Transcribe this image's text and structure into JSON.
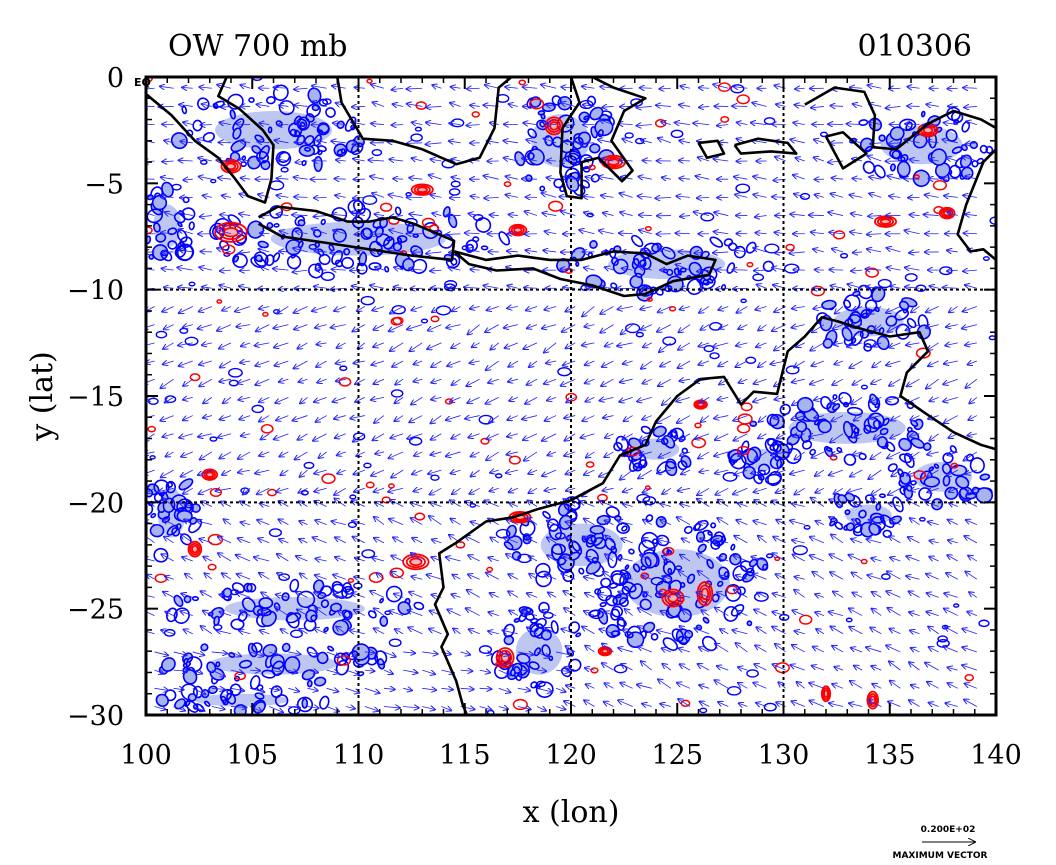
{
  "chart_data": {
    "type": "scatter",
    "title_left": "OW 700 mb",
    "title_right": "010306",
    "xlabel": "x (lon)",
    "ylabel": "y (lat)",
    "xlim": [
      100,
      140
    ],
    "ylim": [
      -30,
      0
    ],
    "x_ticks": [
      100,
      105,
      110,
      115,
      120,
      125,
      130,
      135,
      140
    ],
    "x_tick_labels": [
      "100",
      "105",
      "110",
      "115",
      "120",
      "125",
      "130",
      "135",
      "140"
    ],
    "y_ticks": [
      0,
      -5,
      -10,
      -15,
      -20,
      -25,
      -30
    ],
    "y_tick_labels": [
      "0",
      "−5",
      "−10",
      "−15",
      "−20",
      "−25",
      "−30"
    ],
    "grid_lines_x": [
      110,
      120,
      130
    ],
    "grid_lines_y": [
      -10,
      -20
    ],
    "corner_label": "EQ",
    "vector_scale_label": "0.200E+02",
    "vector_caption": "MAXIMUM VECTOR",
    "colors": {
      "coast": "#000000",
      "positive_contour": "#ff0000",
      "negative_contour": "#0000ff",
      "shade_fill": "#a8b4ee",
      "vector": "#2020ff"
    },
    "coastlines": [
      {
        "name": "sumatra",
        "points": [
          [
            100.0,
            -0.8
          ],
          [
            101.2,
            -1.8
          ],
          [
            102.3,
            -3.0
          ],
          [
            103.4,
            -3.8
          ],
          [
            104.2,
            -4.8
          ],
          [
            104.8,
            -5.6
          ],
          [
            105.6,
            -5.9
          ],
          [
            105.9,
            -4.8
          ],
          [
            106.0,
            -3.2
          ],
          [
            105.5,
            -2.5
          ],
          [
            104.4,
            -1.5
          ],
          [
            103.4,
            -0.9
          ],
          [
            103.8,
            0.0
          ]
        ]
      },
      {
        "name": "java",
        "points": [
          [
            105.3,
            -6.6
          ],
          [
            106.2,
            -6.1
          ],
          [
            108.0,
            -6.3
          ],
          [
            109.5,
            -6.8
          ],
          [
            110.5,
            -6.8
          ],
          [
            111.6,
            -6.6
          ],
          [
            112.6,
            -6.9
          ],
          [
            114.5,
            -7.7
          ],
          [
            114.4,
            -8.6
          ],
          [
            112.5,
            -8.4
          ],
          [
            110.5,
            -8.1
          ],
          [
            108.5,
            -7.8
          ],
          [
            106.4,
            -7.5
          ],
          [
            105.3,
            -6.9
          ]
        ]
      },
      {
        "name": "borneo",
        "points": [
          [
            109.0,
            0.0
          ],
          [
            109.2,
            -1.2
          ],
          [
            110.2,
            -2.9
          ],
          [
            111.6,
            -3.0
          ],
          [
            113.0,
            -3.4
          ],
          [
            114.6,
            -4.1
          ],
          [
            115.7,
            -3.8
          ],
          [
            116.4,
            -2.4
          ],
          [
            116.6,
            -0.5
          ],
          [
            117.2,
            0.0
          ]
        ]
      },
      {
        "name": "sulawesi",
        "points": [
          [
            120.0,
            0.0
          ],
          [
            120.4,
            -1.2
          ],
          [
            119.6,
            -2.4
          ],
          [
            119.5,
            -4.5
          ],
          [
            119.8,
            -5.6
          ],
          [
            120.5,
            -5.7
          ],
          [
            120.5,
            -4.0
          ],
          [
            121.3,
            -3.8
          ],
          [
            122.4,
            -4.9
          ],
          [
            122.9,
            -4.4
          ],
          [
            121.9,
            -3.0
          ],
          [
            122.5,
            -1.6
          ],
          [
            123.5,
            -1.0
          ],
          [
            122.0,
            -0.5
          ],
          [
            121.0,
            0.0
          ]
        ]
      },
      {
        "name": "lesser-sunda",
        "points": [
          [
            114.5,
            -8.2
          ],
          [
            116.0,
            -8.6
          ],
          [
            117.5,
            -8.4
          ],
          [
            119.0,
            -8.6
          ],
          [
            120.5,
            -8.6
          ],
          [
            122.0,
            -8.2
          ],
          [
            123.5,
            -8.3
          ],
          [
            124.5,
            -8.8
          ],
          [
            125.5,
            -8.4
          ],
          [
            126.8,
            -8.6
          ],
          [
            126.5,
            -9.3
          ],
          [
            124.8,
            -9.6
          ],
          [
            123.5,
            -10.2
          ],
          [
            122.5,
            -10.3
          ],
          [
            121.0,
            -9.8
          ],
          [
            119.5,
            -9.5
          ],
          [
            118.2,
            -9.0
          ],
          [
            116.5,
            -9.1
          ],
          [
            115.2,
            -8.8
          ],
          [
            114.5,
            -8.2
          ]
        ]
      },
      {
        "name": "seram",
        "points": [
          [
            127.7,
            -3.2
          ],
          [
            128.8,
            -2.9
          ],
          [
            130.2,
            -3.1
          ],
          [
            130.6,
            -3.6
          ],
          [
            129.4,
            -3.5
          ],
          [
            128.0,
            -3.6
          ],
          [
            127.7,
            -3.2
          ]
        ]
      },
      {
        "name": "buru",
        "points": [
          [
            126.0,
            -3.1
          ],
          [
            126.9,
            -3.0
          ],
          [
            127.2,
            -3.6
          ],
          [
            126.4,
            -3.8
          ],
          [
            126.0,
            -3.1
          ]
        ]
      },
      {
        "name": "new-guinea",
        "points": [
          [
            131.0,
            -1.3
          ],
          [
            132.4,
            -0.5
          ],
          [
            133.8,
            -0.7
          ],
          [
            134.3,
            -1.8
          ],
          [
            134.2,
            -3.3
          ],
          [
            135.3,
            -3.4
          ],
          [
            136.8,
            -2.2
          ],
          [
            138.0,
            -1.6
          ],
          [
            139.3,
            -2.0
          ],
          [
            140.0,
            -2.4
          ],
          [
            140.0,
            -3.4
          ],
          [
            139.4,
            -4.0
          ],
          [
            138.6,
            -6.0
          ],
          [
            138.2,
            -7.4
          ],
          [
            138.8,
            -8.2
          ],
          [
            139.4,
            -8.1
          ],
          [
            140.0,
            -8.6
          ]
        ]
      },
      {
        "name": "bird-head",
        "points": [
          [
            132.0,
            -2.8
          ],
          [
            132.8,
            -2.6
          ],
          [
            133.9,
            -3.6
          ],
          [
            132.8,
            -4.3
          ],
          [
            132.0,
            -2.8
          ]
        ]
      },
      {
        "name": "australia",
        "points": [
          [
            140.0,
            -17.5
          ],
          [
            139.3,
            -17.3
          ],
          [
            138.0,
            -16.7
          ],
          [
            136.8,
            -15.9
          ],
          [
            135.5,
            -15.0
          ],
          [
            135.8,
            -13.9
          ],
          [
            136.8,
            -12.9
          ],
          [
            136.4,
            -12.0
          ],
          [
            135.0,
            -12.2
          ],
          [
            133.5,
            -11.8
          ],
          [
            132.6,
            -11.5
          ],
          [
            131.8,
            -11.3
          ],
          [
            131.0,
            -12.2
          ],
          [
            130.2,
            -12.9
          ],
          [
            129.7,
            -14.9
          ],
          [
            128.6,
            -14.8
          ],
          [
            128.0,
            -15.4
          ],
          [
            127.2,
            -14.1
          ],
          [
            126.1,
            -14.2
          ],
          [
            125.0,
            -15.0
          ],
          [
            124.0,
            -16.2
          ],
          [
            123.5,
            -17.3
          ],
          [
            122.3,
            -17.8
          ],
          [
            121.5,
            -19.1
          ],
          [
            120.0,
            -19.9
          ],
          [
            118.5,
            -20.3
          ],
          [
            117.3,
            -20.7
          ],
          [
            116.0,
            -20.9
          ],
          [
            114.6,
            -21.9
          ],
          [
            113.8,
            -22.4
          ],
          [
            114.0,
            -24.0
          ],
          [
            113.6,
            -24.8
          ],
          [
            114.2,
            -26.2
          ],
          [
            113.9,
            -26.8
          ],
          [
            114.6,
            -28.4
          ],
          [
            114.9,
            -29.5
          ],
          [
            115.1,
            -30.0
          ]
        ]
      }
    ],
    "positive_blobs": [
      {
        "x": 104.0,
        "y": -7.3,
        "rx": 1.5,
        "ry": 0.9
      },
      {
        "x": 102.3,
        "y": -22.2,
        "rx": 0.6,
        "ry": 0.7
      },
      {
        "x": 103.0,
        "y": -18.7,
        "rx": 0.7,
        "ry": 0.5
      },
      {
        "x": 112.7,
        "y": -22.8,
        "rx": 1.2,
        "ry": 0.7
      },
      {
        "x": 117.6,
        "y": -20.7,
        "rx": 1.0,
        "ry": 0.5
      },
      {
        "x": 116.9,
        "y": -27.3,
        "rx": 0.8,
        "ry": 0.9
      },
      {
        "x": 124.8,
        "y": -24.5,
        "rx": 1.0,
        "ry": 0.8
      },
      {
        "x": 126.3,
        "y": -24.3,
        "rx": 0.7,
        "ry": 1.1
      },
      {
        "x": 119.2,
        "y": -2.3,
        "rx": 0.8,
        "ry": 0.8
      },
      {
        "x": 122.0,
        "y": -4.0,
        "rx": 1.1,
        "ry": 0.6
      },
      {
        "x": 134.8,
        "y": -6.8,
        "rx": 1.0,
        "ry": 0.5
      },
      {
        "x": 104.0,
        "y": -4.2,
        "rx": 0.9,
        "ry": 0.6
      },
      {
        "x": 113.0,
        "y": -5.3,
        "rx": 1.0,
        "ry": 0.5
      },
      {
        "x": 117.5,
        "y": -7.2,
        "rx": 0.8,
        "ry": 0.5
      },
      {
        "x": 126.1,
        "y": -15.4,
        "rx": 0.6,
        "ry": 0.4
      },
      {
        "x": 137.7,
        "y": -6.4,
        "rx": 0.7,
        "ry": 0.5
      },
      {
        "x": 136.8,
        "y": -2.5,
        "rx": 0.9,
        "ry": 0.6
      },
      {
        "x": 134.2,
        "y": -29.3,
        "rx": 0.5,
        "ry": 0.8
      },
      {
        "x": 132.0,
        "y": -29.0,
        "rx": 0.4,
        "ry": 0.7
      },
      {
        "x": 121.6,
        "y": -27.0,
        "rx": 0.6,
        "ry": 0.4
      }
    ],
    "negative_regions": [
      {
        "x": 101.0,
        "y": -7.0,
        "rx": 1.2,
        "ry": 2.0
      },
      {
        "x": 110.0,
        "y": -7.6,
        "rx": 7.5,
        "ry": 1.6
      },
      {
        "x": 106.0,
        "y": -2.5,
        "rx": 5.0,
        "ry": 1.8
      },
      {
        "x": 119.5,
        "y": -3.0,
        "rx": 2.5,
        "ry": 2.5
      },
      {
        "x": 136.5,
        "y": -3.2,
        "rx": 3.5,
        "ry": 1.8
      },
      {
        "x": 124.5,
        "y": -8.8,
        "rx": 5.0,
        "ry": 1.4
      },
      {
        "x": 125.0,
        "y": -23.8,
        "rx": 4.5,
        "ry": 3.2
      },
      {
        "x": 120.5,
        "y": -22.0,
        "rx": 3.5,
        "ry": 2.0
      },
      {
        "x": 133.0,
        "y": -16.5,
        "rx": 5.0,
        "ry": 1.5
      },
      {
        "x": 137.5,
        "y": -18.8,
        "rx": 2.5,
        "ry": 1.4
      },
      {
        "x": 134.0,
        "y": -20.6,
        "rx": 2.0,
        "ry": 1.0
      },
      {
        "x": 107.0,
        "y": -25.0,
        "rx": 6.0,
        "ry": 1.1
      },
      {
        "x": 106.0,
        "y": -27.6,
        "rx": 5.5,
        "ry": 1.0
      },
      {
        "x": 104.5,
        "y": -29.3,
        "rx": 4.0,
        "ry": 0.6
      },
      {
        "x": 101.2,
        "y": -20.5,
        "rx": 1.2,
        "ry": 2.3
      },
      {
        "x": 118.5,
        "y": -27.0,
        "rx": 2.0,
        "ry": 2.2
      },
      {
        "x": 134.0,
        "y": -11.5,
        "rx": 3.0,
        "ry": 1.4
      },
      {
        "x": 129.0,
        "y": -18.0,
        "rx": 1.5,
        "ry": 1.0
      },
      {
        "x": 124.0,
        "y": -17.5,
        "rx": 2.0,
        "ry": 1.0
      }
    ],
    "wind_regimes": [
      {
        "y_min": -10,
        "y_max": 0,
        "u": -0.9,
        "v": 0.1
      },
      {
        "y_min": -20,
        "y_max": -10,
        "u": -0.8,
        "v": -0.35
      },
      {
        "y_min": -30,
        "y_max": -20,
        "u": -0.85,
        "v": 0.4
      }
    ],
    "southwest_jet": {
      "x_min": 100,
      "x_max": 120,
      "y_min": -30,
      "y_max": -27,
      "u": 1.0,
      "v": -0.25
    }
  }
}
